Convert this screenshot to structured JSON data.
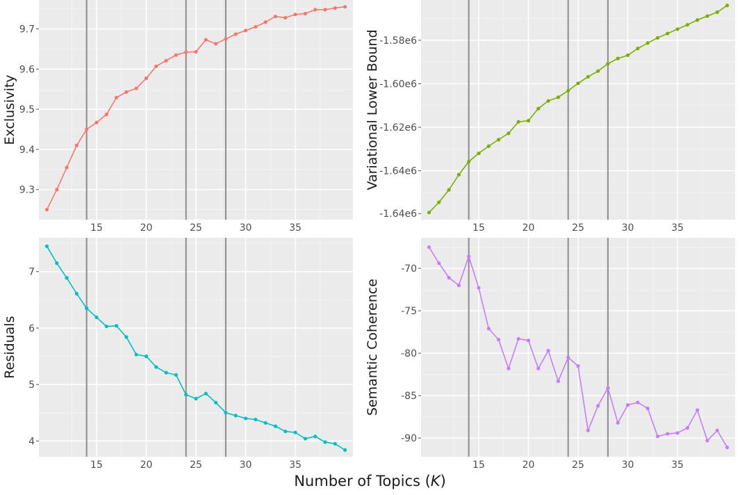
{
  "figure": {
    "xlabel_prefix": "Number of Topics (",
    "xlabel_var": "K",
    "xlabel_suffix": ")"
  },
  "chart_data": [
    {
      "type": "line",
      "ylabel": "Exclusivity",
      "xlabel": "Number of Topics (K)",
      "color": "#F8766D",
      "x": [
        10,
        11,
        12,
        13,
        14,
        15,
        16,
        17,
        18,
        19,
        20,
        21,
        22,
        23,
        24,
        25,
        26,
        27,
        28,
        29,
        30,
        31,
        32,
        33,
        34,
        35,
        36,
        37,
        38,
        39,
        40
      ],
      "values": [
        9.25,
        9.3,
        9.355,
        9.41,
        9.45,
        9.467,
        9.487,
        9.529,
        9.543,
        9.552,
        9.577,
        9.607,
        9.621,
        9.635,
        9.642,
        9.643,
        9.673,
        9.663,
        9.675,
        9.687,
        9.696,
        9.705,
        9.717,
        9.731,
        9.728,
        9.736,
        9.738,
        9.748,
        9.748,
        9.752,
        9.755
      ],
      "xticks": [
        15,
        20,
        25,
        30,
        35
      ],
      "xtick_labels": [
        "15",
        "20",
        "25",
        "30",
        "35"
      ],
      "yticks": [
        9.3,
        9.4,
        9.5,
        9.6,
        9.7
      ],
      "ytick_labels": [
        "9.3",
        "9.4",
        "9.5",
        "9.6",
        "9.7"
      ],
      "xlim": [
        9.2,
        40.8
      ],
      "ylim": [
        9.225,
        9.772
      ],
      "vlines": [
        14,
        24,
        28
      ]
    },
    {
      "type": "line",
      "ylabel": "Variational Lower Bound",
      "xlabel": "Number of Topics (K)",
      "color": "#7CAE00",
      "x": [
        10,
        11,
        12,
        13,
        14,
        15,
        16,
        17,
        18,
        19,
        20,
        21,
        22,
        23,
        24,
        25,
        26,
        27,
        28,
        29,
        30,
        31,
        32,
        33,
        34,
        35,
        36,
        37,
        38,
        39,
        40
      ],
      "values": [
        -1659200,
        -1654500,
        -1648800,
        -1641800,
        -1635800,
        -1632000,
        -1628700,
        -1625700,
        -1622800,
        -1617500,
        -1617000,
        -1611400,
        -1607900,
        -1606200,
        -1603200,
        -1599800,
        -1596800,
        -1594200,
        -1590800,
        -1588400,
        -1586900,
        -1583800,
        -1581300,
        -1578900,
        -1576900,
        -1574900,
        -1572900,
        -1570700,
        -1568900,
        -1567100,
        -1564000
      ],
      "xticks": [
        15,
        20,
        25,
        30,
        35
      ],
      "xtick_labels": [
        "15",
        "20",
        "25",
        "30",
        "35"
      ],
      "yticks": [
        -1640000,
        -1620000,
        -1600000,
        -1580000
      ],
      "ytick_labels": [
        "-1.64e6",
        "-1.62e6",
        "-1.60e6",
        "-1.58e6"
      ],
      "ytick_bottom_label": "-1.64e6",
      "ytick_bottom_value": -1659700,
      "xlim": [
        9.2,
        40.8
      ],
      "ylim": [
        -1662500,
        -1561500
      ],
      "vlines": [
        14,
        24,
        28
      ]
    },
    {
      "type": "line",
      "ylabel": "Residuals",
      "xlabel": "Number of Topics (K)",
      "color": "#00BFC4",
      "x": [
        10,
        11,
        12,
        13,
        14,
        15,
        16,
        17,
        18,
        19,
        20,
        21,
        22,
        23,
        24,
        25,
        26,
        27,
        28,
        29,
        30,
        31,
        32,
        33,
        34,
        35,
        36,
        37,
        38,
        39,
        40
      ],
      "values": [
        7.45,
        7.15,
        6.89,
        6.61,
        6.35,
        6.19,
        6.03,
        6.04,
        5.84,
        5.53,
        5.5,
        5.31,
        5.21,
        5.17,
        4.82,
        4.75,
        4.84,
        4.68,
        4.5,
        4.45,
        4.4,
        4.38,
        4.32,
        4.26,
        4.17,
        4.15,
        4.04,
        4.08,
        3.98,
        3.95,
        3.84
      ],
      "xticks": [
        15,
        20,
        25,
        30,
        35
      ],
      "xtick_labels": [
        "15",
        "20",
        "25",
        "30",
        "35"
      ],
      "yticks": [
        4,
        5,
        6,
        7
      ],
      "ytick_labels": [
        "4",
        "5",
        "6",
        "7"
      ],
      "xlim": [
        9.2,
        40.8
      ],
      "ylim": [
        3.72,
        7.6
      ],
      "vlines": [
        14,
        24,
        28
      ]
    },
    {
      "type": "line",
      "ylabel": "Semantic Coherence",
      "xlabel": "Number of Topics (K)",
      "color": "#C77CFF",
      "x": [
        10,
        11,
        12,
        13,
        14,
        15,
        16,
        17,
        18,
        19,
        20,
        21,
        22,
        23,
        24,
        25,
        26,
        27,
        28,
        29,
        30,
        31,
        32,
        33,
        34,
        35,
        36,
        37,
        38,
        39,
        40
      ],
      "values": [
        -67.5,
        -69.4,
        -71.1,
        -72.0,
        -68.6,
        -72.3,
        -77.1,
        -78.4,
        -81.8,
        -78.3,
        -78.5,
        -81.8,
        -79.7,
        -83.3,
        -80.5,
        -81.5,
        -89.1,
        -86.2,
        -84.1,
        -88.2,
        -86.1,
        -85.8,
        -86.5,
        -89.8,
        -89.5,
        -89.4,
        -88.8,
        -86.7,
        -90.3,
        -89.1,
        -91.1
      ],
      "xticks": [
        15,
        20,
        25,
        30,
        35
      ],
      "xtick_labels": [
        "15",
        "20",
        "25",
        "30",
        "35"
      ],
      "yticks": [
        -90,
        -85,
        -80,
        -75,
        -70
      ],
      "ytick_labels": [
        "-90",
        "-85",
        "-80",
        "-75",
        "-70"
      ],
      "xlim": [
        9.2,
        40.8
      ],
      "ylim": [
        -92.2,
        -66.4
      ],
      "vlines": [
        14,
        24,
        28
      ]
    }
  ]
}
